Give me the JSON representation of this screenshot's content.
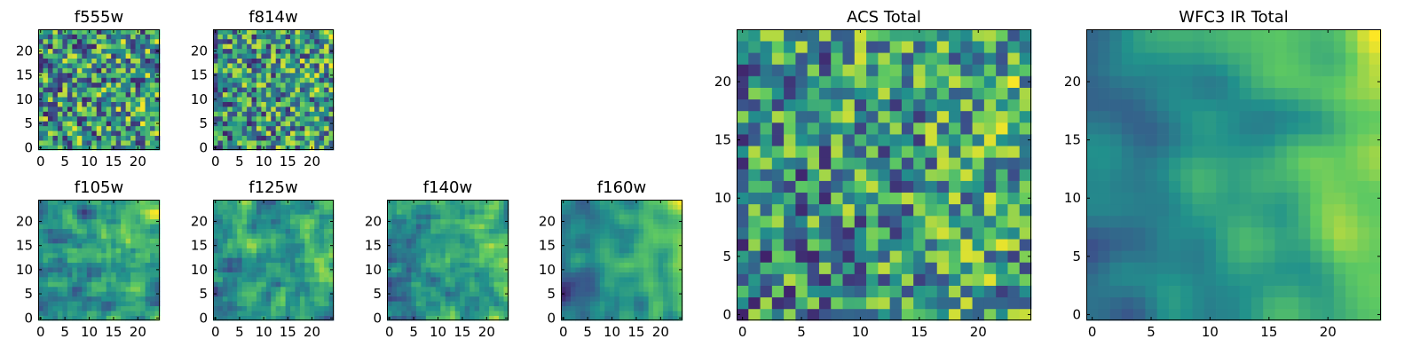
{
  "chart_data": [
    {
      "type": "heatmap",
      "title": "f555w",
      "xlabel": "",
      "ylabel": "",
      "xlim": [
        0,
        25
      ],
      "ylim": [
        0,
        25
      ],
      "xticks": [
        "0",
        "5",
        "10",
        "15",
        "20"
      ],
      "yticks": [
        "0",
        "5",
        "10",
        "15",
        "20"
      ],
      "grid": [
        25,
        25
      ],
      "colormap": "viridis",
      "pattern": "noise",
      "seed": 11,
      "smooth": 0,
      "gradient": 0.05
    },
    {
      "type": "heatmap",
      "title": "f814w",
      "xlabel": "",
      "ylabel": "",
      "xlim": [
        0,
        25
      ],
      "ylim": [
        0,
        25
      ],
      "xticks": [
        "0",
        "5",
        "10",
        "15",
        "20"
      ],
      "yticks": [
        "0",
        "5",
        "10",
        "15",
        "20"
      ],
      "grid": [
        25,
        25
      ],
      "colormap": "viridis",
      "pattern": "noise",
      "seed": 23,
      "smooth": 0,
      "gradient": 0.1
    },
    {
      "type": "heatmap",
      "title": "f105w",
      "xlabel": "",
      "ylabel": "",
      "xlim": [
        0,
        25
      ],
      "ylim": [
        0,
        25
      ],
      "xticks": [
        "0",
        "5",
        "10",
        "15",
        "20"
      ],
      "yticks": [
        "0",
        "5",
        "10",
        "15",
        "20"
      ],
      "grid": [
        25,
        25
      ],
      "colormap": "viridis",
      "pattern": "smooth-noise",
      "seed": 37,
      "smooth": 1,
      "gradient": 0.2
    },
    {
      "type": "heatmap",
      "title": "f125w",
      "xlabel": "",
      "ylabel": "",
      "xlim": [
        0,
        25
      ],
      "ylim": [
        0,
        25
      ],
      "xticks": [
        "0",
        "5",
        "10",
        "15",
        "20"
      ],
      "yticks": [
        "0",
        "5",
        "10",
        "15",
        "20"
      ],
      "grid": [
        25,
        25
      ],
      "colormap": "viridis",
      "pattern": "smooth-noise",
      "seed": 41,
      "smooth": 1,
      "gradient": 0.25
    },
    {
      "type": "heatmap",
      "title": "f140w",
      "xlabel": "",
      "ylabel": "",
      "xlim": [
        0,
        25
      ],
      "ylim": [
        0,
        25
      ],
      "xticks": [
        "0",
        "5",
        "10",
        "15",
        "20"
      ],
      "yticks": [
        "0",
        "5",
        "10",
        "15",
        "20"
      ],
      "grid": [
        25,
        25
      ],
      "colormap": "viridis",
      "pattern": "smooth-noise",
      "seed": 53,
      "smooth": 1,
      "gradient": 0.35
    },
    {
      "type": "heatmap",
      "title": "f160w",
      "xlabel": "",
      "ylabel": "",
      "xlim": [
        0,
        25
      ],
      "ylim": [
        0,
        25
      ],
      "xticks": [
        "0",
        "5",
        "10",
        "15",
        "20"
      ],
      "yticks": [
        "0",
        "5",
        "10",
        "15",
        "20"
      ],
      "grid": [
        25,
        25
      ],
      "colormap": "viridis",
      "pattern": "smooth-noise",
      "seed": 67,
      "smooth": 2,
      "gradient": 0.5
    },
    {
      "type": "heatmap",
      "title": "ACS Total",
      "xlabel": "",
      "ylabel": "",
      "xlim": [
        0,
        25
      ],
      "ylim": [
        0,
        25
      ],
      "xticks": [
        "0",
        "5",
        "10",
        "15",
        "20"
      ],
      "yticks": [
        "0",
        "5",
        "10",
        "15",
        "20"
      ],
      "grid": [
        25,
        25
      ],
      "colormap": "viridis",
      "pattern": "noise",
      "seed": 79,
      "smooth": 0,
      "gradient": 0.15
    },
    {
      "type": "heatmap",
      "title": "WFC3 IR Total",
      "xlabel": "",
      "ylabel": "",
      "xlim": [
        0,
        25
      ],
      "ylim": [
        0,
        25
      ],
      "xticks": [
        "0",
        "5",
        "10",
        "15",
        "20"
      ],
      "yticks": [
        "0",
        "5",
        "10",
        "15",
        "20"
      ],
      "grid": [
        25,
        25
      ],
      "colormap": "viridis",
      "pattern": "smooth-noise",
      "seed": 97,
      "smooth": 3,
      "gradient": 0.6
    }
  ],
  "colors": {
    "viridis_stops": [
      "#440154",
      "#3b528b",
      "#21918c",
      "#5ec962",
      "#fde725"
    ],
    "axis": "#000000",
    "background": "#ffffff"
  }
}
